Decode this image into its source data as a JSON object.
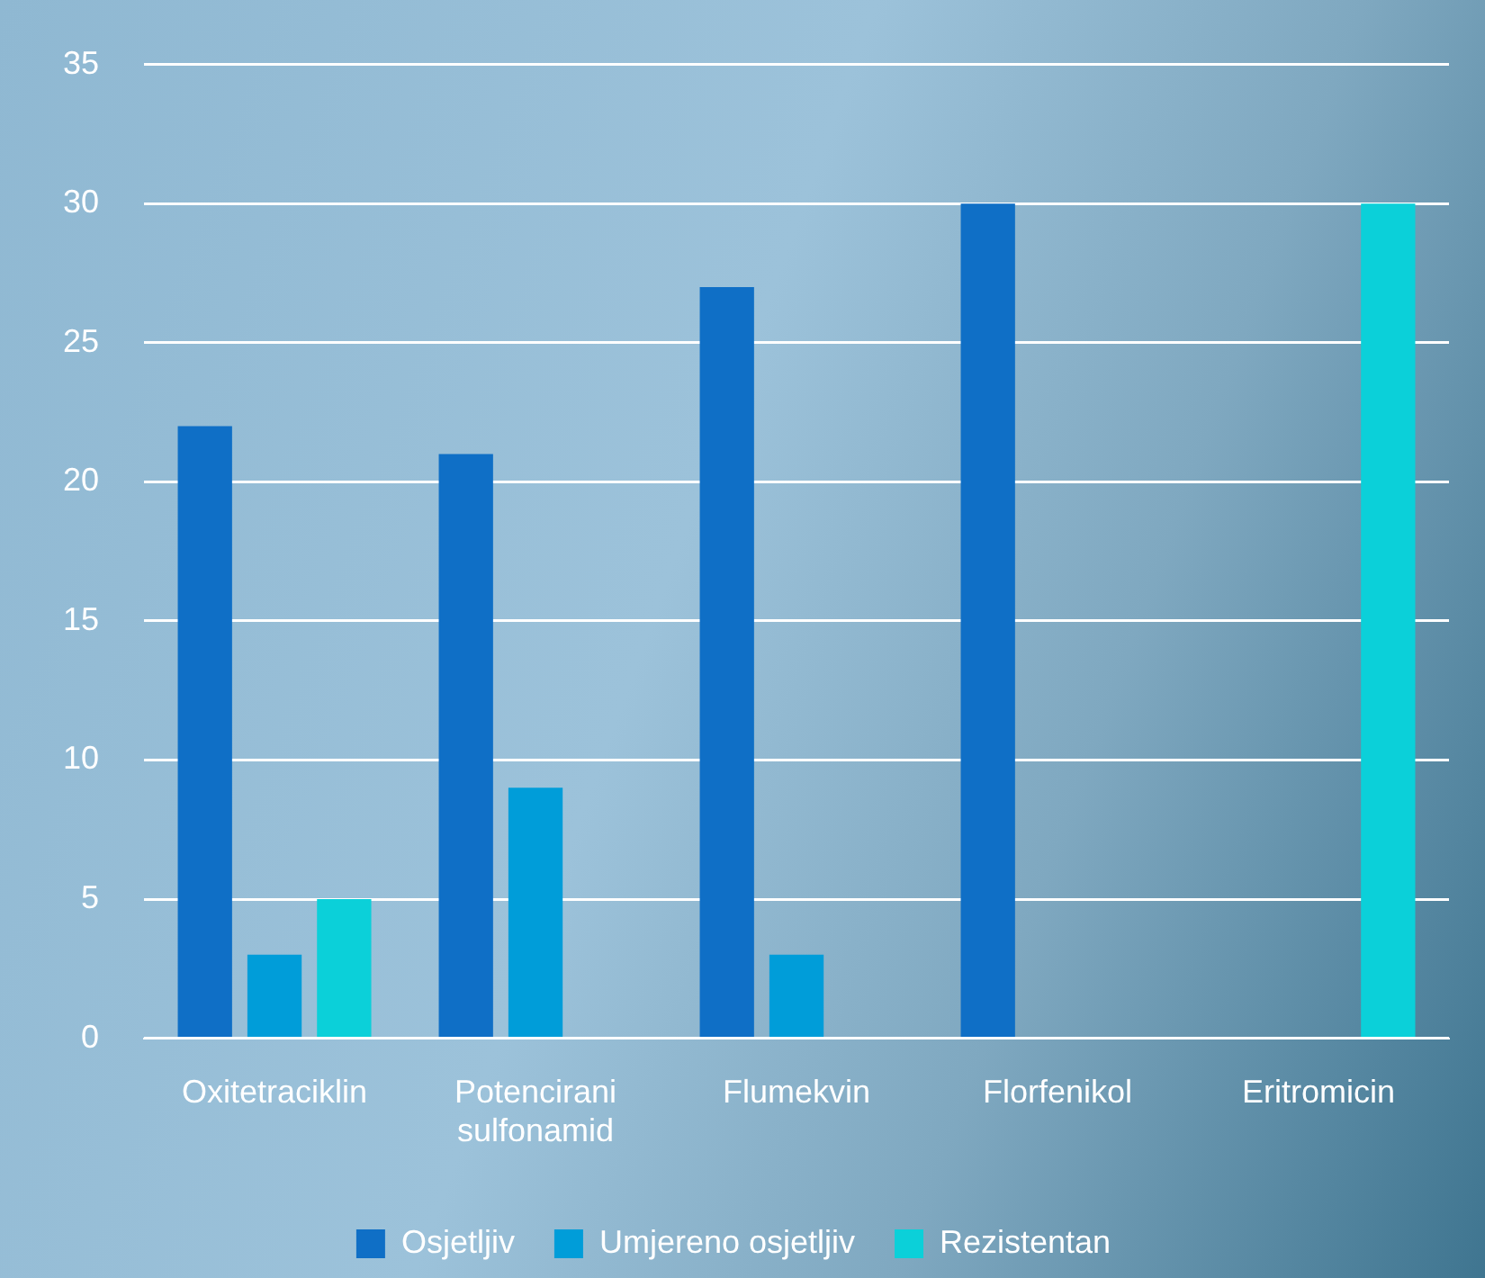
{
  "chart_data": {
    "type": "bar",
    "categories": [
      "Oxitetraciklin",
      "Potencirani sulfonamid",
      "Flumekvin",
      "Florfenikol",
      "Eritromicin"
    ],
    "series": [
      {
        "name": "Osjetljiv",
        "color": "#0f6fc6",
        "values": [
          22,
          21,
          27,
          30,
          0
        ]
      },
      {
        "name": "Umjereno osjetljiv",
        "color": "#009dd9",
        "values": [
          3,
          9,
          3,
          0,
          0
        ]
      },
      {
        "name": "Rezistentan",
        "color": "#0bd0d9",
        "values": [
          5,
          0,
          0,
          0,
          30
        ]
      }
    ],
    "ylim": [
      0,
      35
    ],
    "yticks": [
      0,
      5,
      10,
      15,
      20,
      25,
      30,
      35
    ],
    "grid": "y",
    "legend": "bottom"
  }
}
